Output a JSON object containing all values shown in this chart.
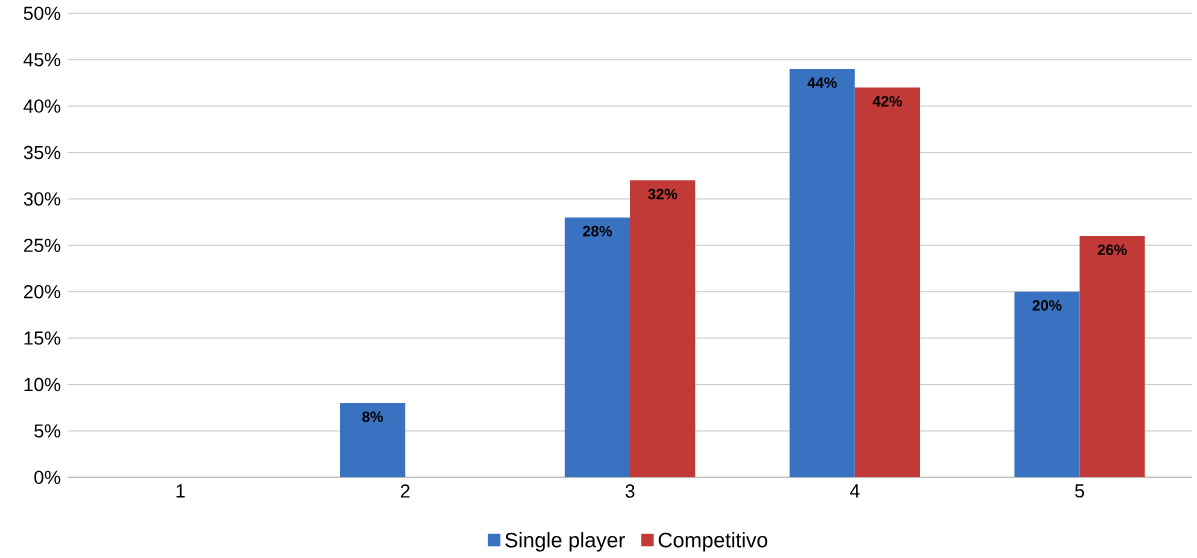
{
  "chart_data": {
    "type": "bar",
    "categories": [
      "1",
      "2",
      "3",
      "4",
      "5"
    ],
    "series": [
      {
        "name": "Single player",
        "color": "#3a72c2",
        "values": [
          0,
          8,
          28,
          44,
          20
        ],
        "value_labels": [
          null,
          "8%",
          "28%",
          "44%",
          "20%"
        ]
      },
      {
        "name": "Competitivo",
        "color": "#c23a38",
        "values": [
          0,
          0,
          32,
          42,
          26
        ],
        "value_labels": [
          null,
          null,
          "32%",
          "42%",
          "26%"
        ]
      }
    ],
    "ylim": [
      0,
      50
    ],
    "yticks": [
      {
        "value": 0,
        "label": "0%"
      },
      {
        "value": 5,
        "label": "5%"
      },
      {
        "value": 10,
        "label": "10%"
      },
      {
        "value": 15,
        "label": "15%"
      },
      {
        "value": 20,
        "label": "20%"
      },
      {
        "value": 25,
        "label": "25%"
      },
      {
        "value": 30,
        "label": "30%"
      },
      {
        "value": 35,
        "label": "35%"
      },
      {
        "value": 40,
        "label": "40%"
      },
      {
        "value": 45,
        "label": "45%"
      },
      {
        "value": 50,
        "label": "50%"
      }
    ],
    "grid": "y",
    "legend": "bottom"
  }
}
